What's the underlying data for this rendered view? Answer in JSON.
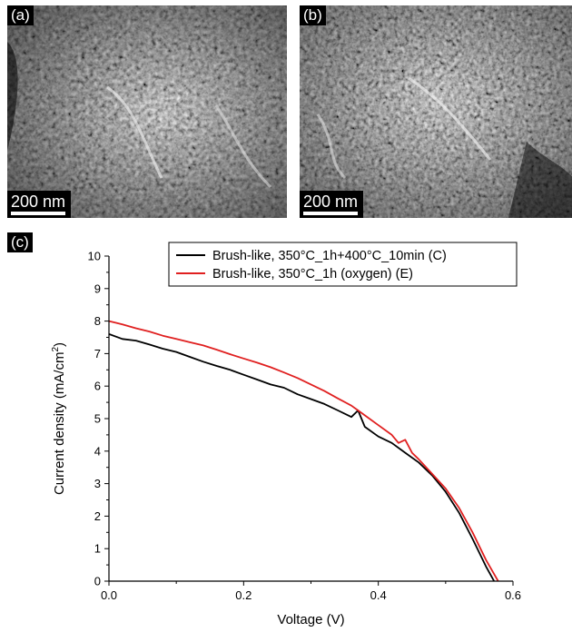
{
  "panels": {
    "a": {
      "tag": "(a)",
      "scale": "200 nm"
    },
    "b": {
      "tag": "(b)",
      "scale": "200 nm"
    },
    "c": {
      "tag": "(c)"
    }
  },
  "chart_data": {
    "type": "line",
    "xlabel": "Voltage (V)",
    "ylabel": "Current density (mA/cm",
    "ylabel_sup": "2",
    "ylabel_end": ")",
    "xlim": [
      0,
      0.6
    ],
    "ylim": [
      0,
      10
    ],
    "xticks": [
      "0.0",
      "0.2",
      "0.4",
      "0.6"
    ],
    "yticks": [
      "0",
      "1",
      "2",
      "3",
      "4",
      "5",
      "6",
      "7",
      "8",
      "9",
      "10"
    ],
    "legend_position": "top-right",
    "grid": false,
    "series": [
      {
        "name": "Brush-like, 350°C_1h+400°C_10min (C)",
        "color": "#000000",
        "x": [
          0,
          0.02,
          0.04,
          0.06,
          0.08,
          0.1,
          0.12,
          0.14,
          0.16,
          0.18,
          0.2,
          0.22,
          0.24,
          0.26,
          0.28,
          0.3,
          0.32,
          0.34,
          0.36,
          0.37,
          0.375,
          0.38,
          0.4,
          0.42,
          0.44,
          0.46,
          0.48,
          0.5,
          0.52,
          0.54,
          0.56,
          0.572
        ],
        "y": [
          7.6,
          7.45,
          7.4,
          7.28,
          7.15,
          7.05,
          6.9,
          6.75,
          6.62,
          6.5,
          6.35,
          6.2,
          6.05,
          5.95,
          5.75,
          5.6,
          5.45,
          5.25,
          5.05,
          5.25,
          5.0,
          4.75,
          4.45,
          4.25,
          3.95,
          3.65,
          3.25,
          2.75,
          2.1,
          1.3,
          0.45,
          0.0
        ]
      },
      {
        "name": "Brush-like, 350°C_1h (oxygen) (E)",
        "color": "#e02020",
        "x": [
          0,
          0.02,
          0.04,
          0.06,
          0.08,
          0.1,
          0.12,
          0.14,
          0.16,
          0.18,
          0.2,
          0.22,
          0.24,
          0.26,
          0.28,
          0.3,
          0.32,
          0.34,
          0.36,
          0.37,
          0.38,
          0.4,
          0.42,
          0.43,
          0.44,
          0.45,
          0.46,
          0.48,
          0.5,
          0.52,
          0.54,
          0.56,
          0.578
        ],
        "y": [
          8.0,
          7.9,
          7.78,
          7.68,
          7.55,
          7.45,
          7.35,
          7.25,
          7.12,
          6.98,
          6.85,
          6.72,
          6.58,
          6.42,
          6.25,
          6.05,
          5.85,
          5.62,
          5.4,
          5.25,
          5.1,
          4.8,
          4.5,
          4.25,
          4.35,
          3.95,
          3.75,
          3.3,
          2.85,
          2.25,
          1.5,
          0.65,
          0.0
        ]
      }
    ]
  }
}
